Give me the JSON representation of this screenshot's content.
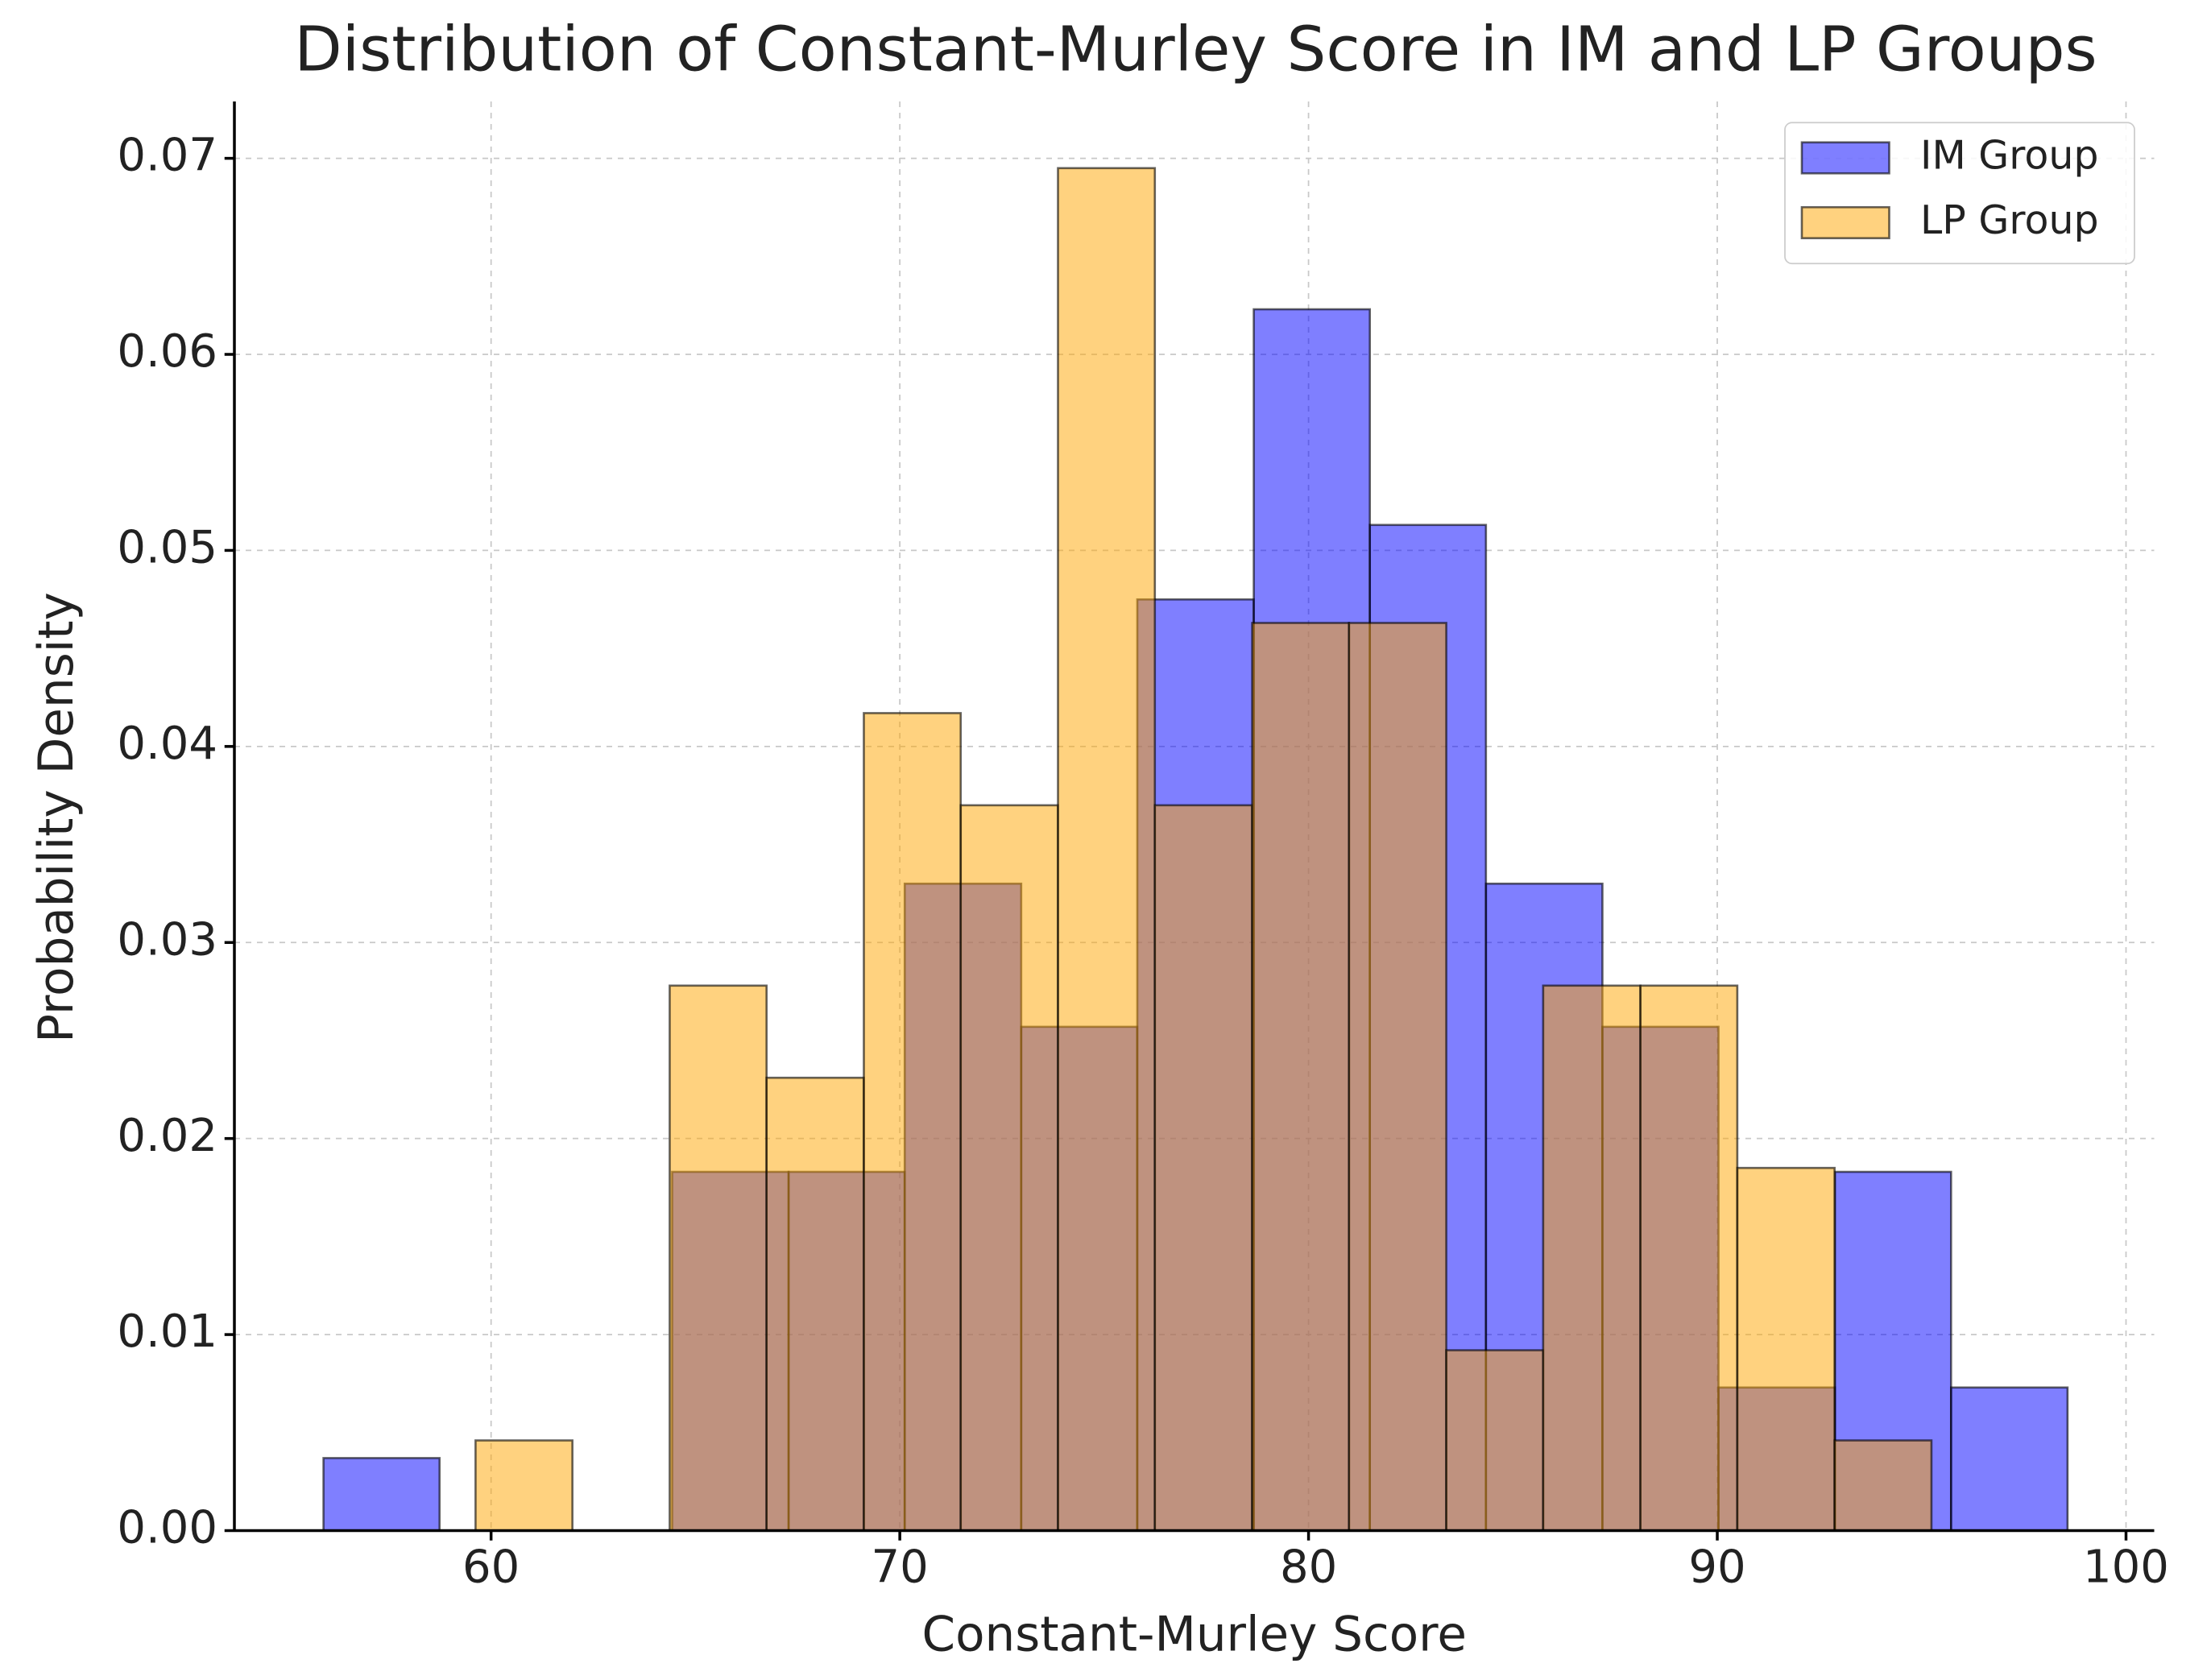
{
  "chart_data": {
    "type": "histogram",
    "title": "Distribution of Constant-Murley Score in IM and LP Groups",
    "x_label": "Constant-Murley Score",
    "y_label": "Probability Density",
    "series": [
      {
        "name": "IM Group",
        "color": "#0000ff",
        "bins": [
          55.9,
          58.74,
          61.59,
          64.43,
          67.28,
          70.12,
          72.97,
          75.81,
          78.66,
          81.5,
          84.34,
          87.19,
          90.03,
          92.88,
          95.72,
          98.57
        ],
        "values": [
          0.0037,
          0,
          0,
          0.0183,
          0.0183,
          0.033,
          0.0257,
          0.0475,
          0.0623,
          0.0513,
          0.033,
          0.0257,
          0.0073,
          0.0183,
          0.0073
        ]
      },
      {
        "name": "LP Group",
        "color": "#ffa500",
        "bins": [
          59.62,
          61.99,
          64.37,
          66.74,
          69.12,
          71.49,
          73.87,
          76.24,
          78.62,
          80.99,
          83.37,
          85.74,
          88.12,
          90.49,
          92.87,
          95.24
        ],
        "values": [
          0.0046,
          0,
          0.0278,
          0.0231,
          0.0417,
          0.037,
          0.0695,
          0.037,
          0.0463,
          0.0463,
          0.0092,
          0.0278,
          0.0278,
          0.0185,
          0.0046
        ]
      }
    ],
    "xlim": [
      53.72,
      100.69
    ],
    "ylim": [
      0,
      0.0729
    ],
    "xticks": [
      60,
      70,
      80,
      90,
      100
    ],
    "yticks": [
      {
        "value": 0,
        "label": "0.00"
      },
      0.01,
      0.02,
      0.03,
      0.04,
      0.05,
      0.06,
      0.07
    ],
    "grid": true,
    "legend": "upper right"
  }
}
